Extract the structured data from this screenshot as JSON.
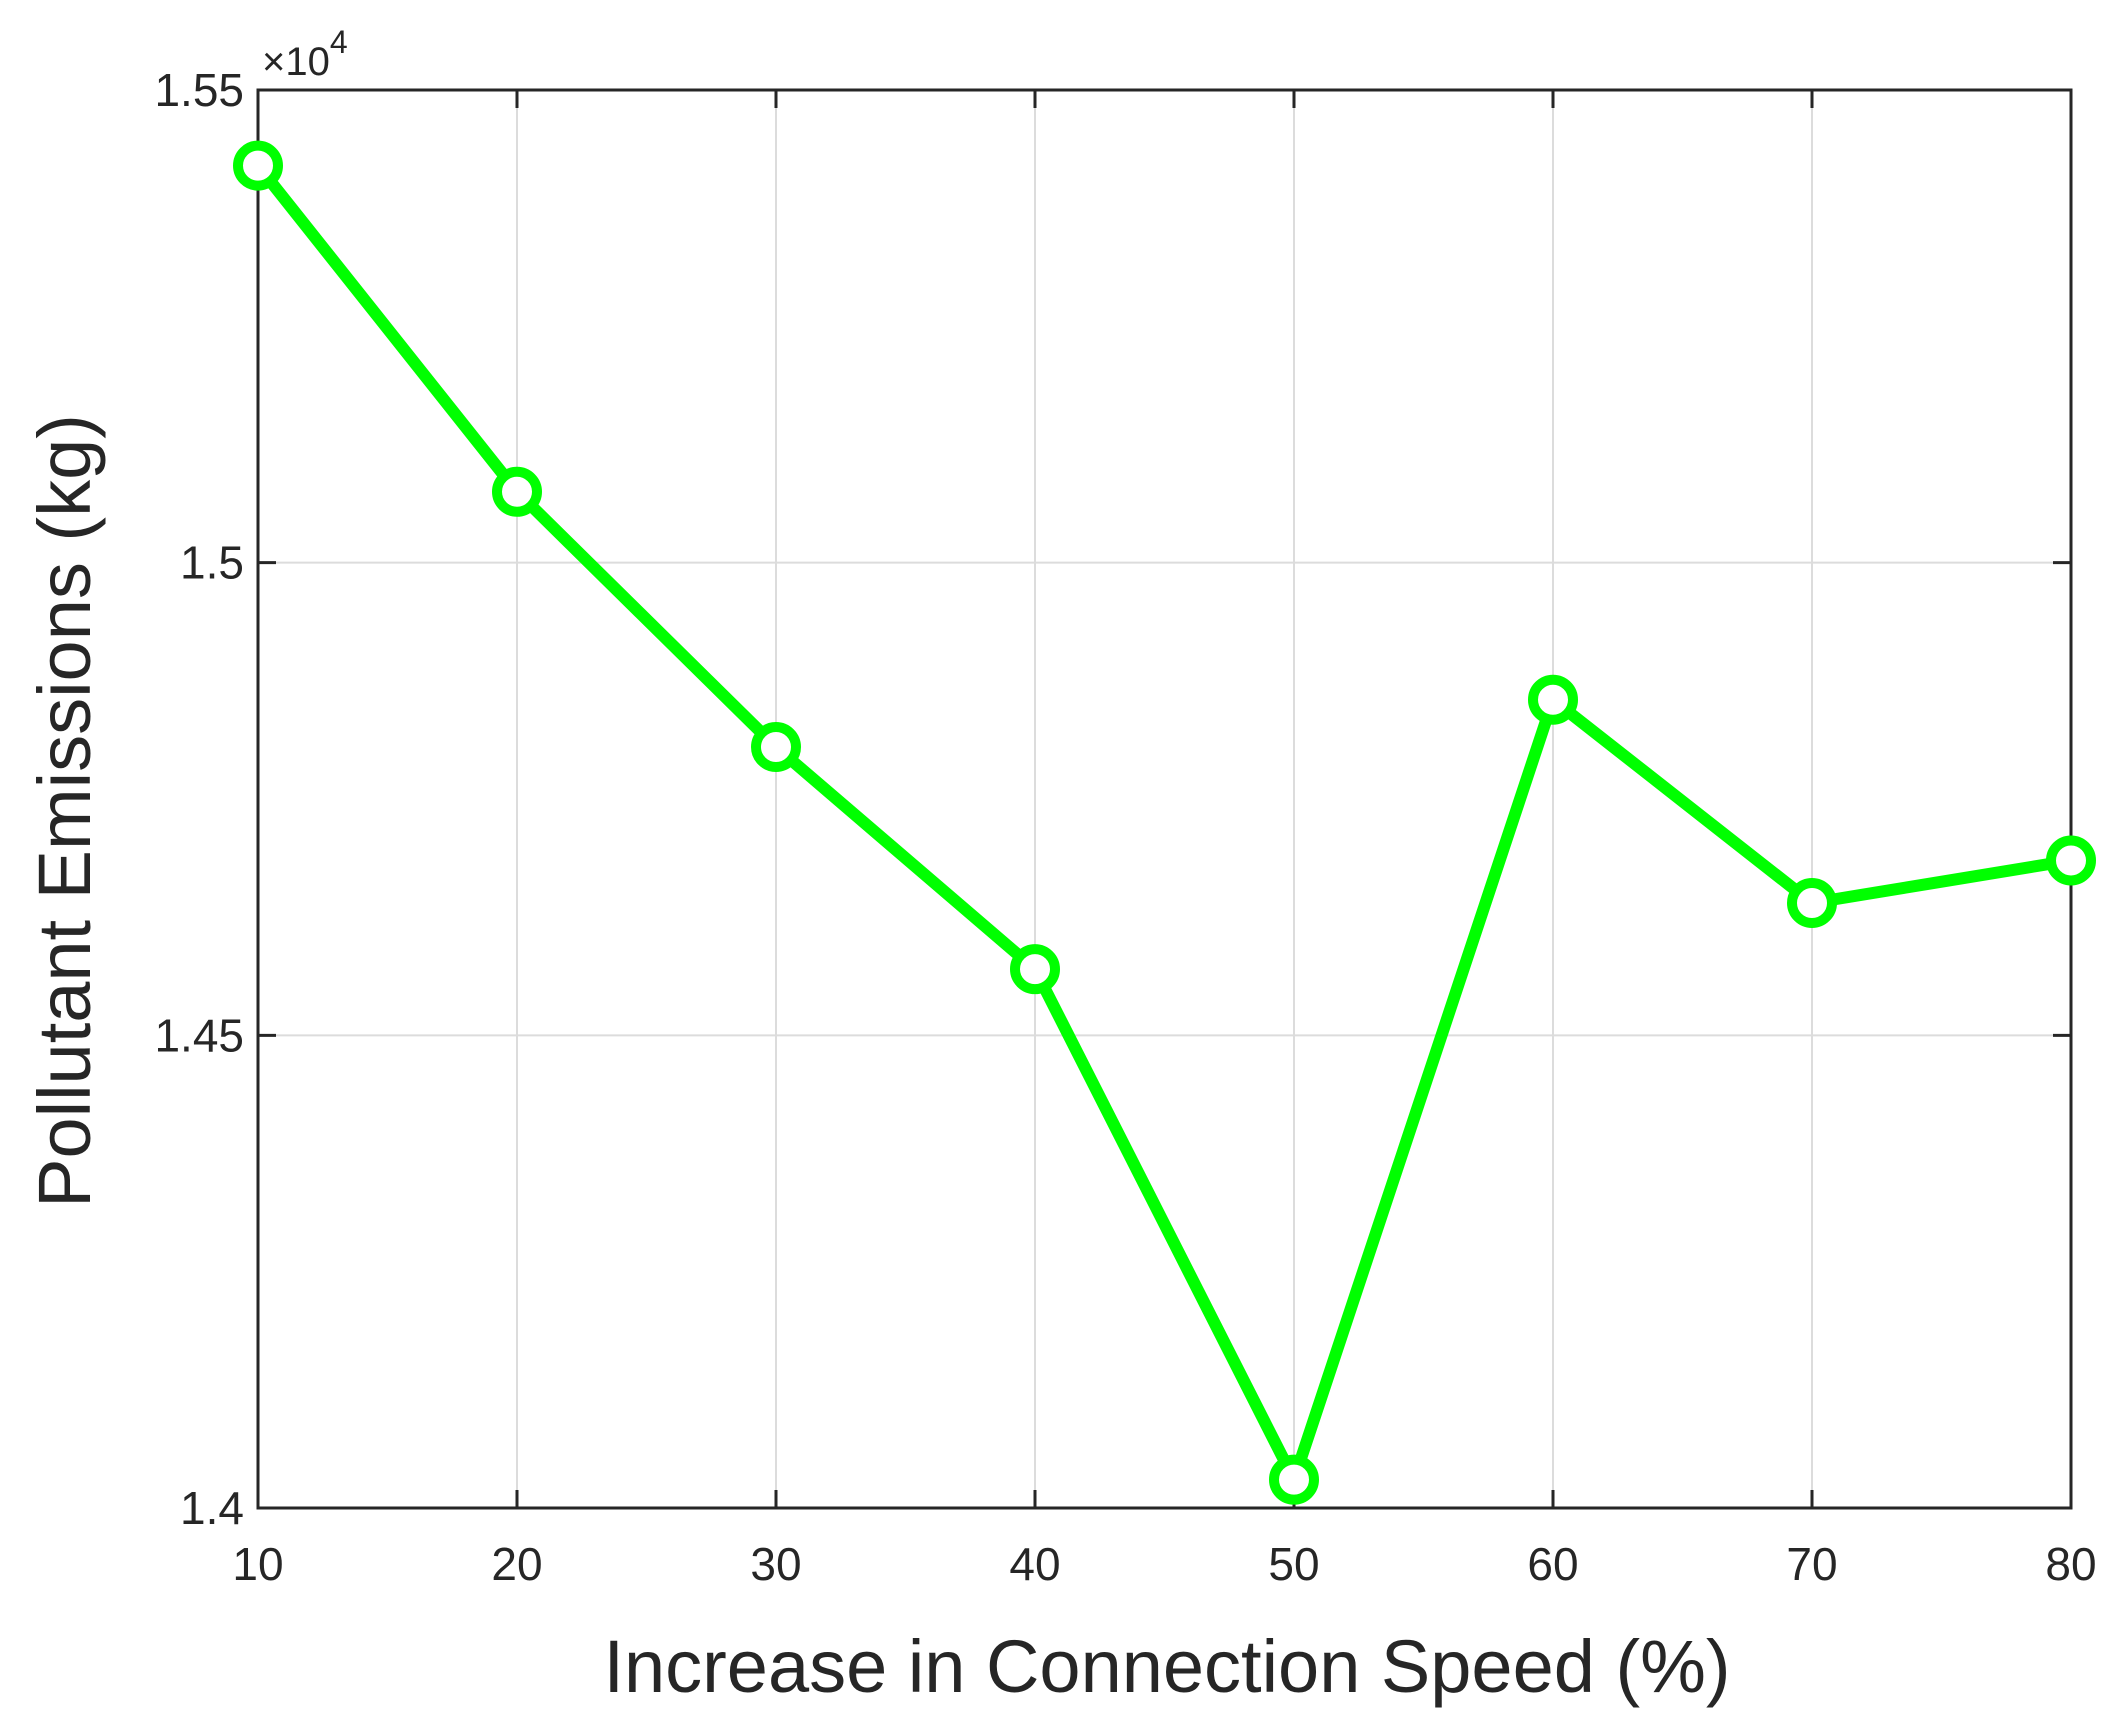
{
  "chart_data": {
    "type": "line",
    "xlabel": "Increase in Connection Speed (%)",
    "ylabel": "Pollutant Emissions (kg)",
    "x": [
      10,
      20,
      30,
      40,
      50,
      60,
      70,
      80
    ],
    "series": [
      {
        "values": [
          15420,
          15075,
          14805,
          14570,
          14030,
          14855,
          14640,
          14685
        ],
        "color": "#00ff00",
        "marker": "circle"
      }
    ],
    "xlim": [
      10,
      80
    ],
    "ylim": [
      14000,
      15500
    ],
    "xticks": [
      10,
      20,
      30,
      40,
      50,
      60,
      70,
      80
    ],
    "yticks": [
      14000,
      14500,
      15000,
      15500
    ],
    "yticklabels": [
      "1.4",
      "1.45",
      "1.5",
      "1.55"
    ],
    "y_exponent_base": "×10",
    "y_exponent_power": "4",
    "grid": true
  }
}
